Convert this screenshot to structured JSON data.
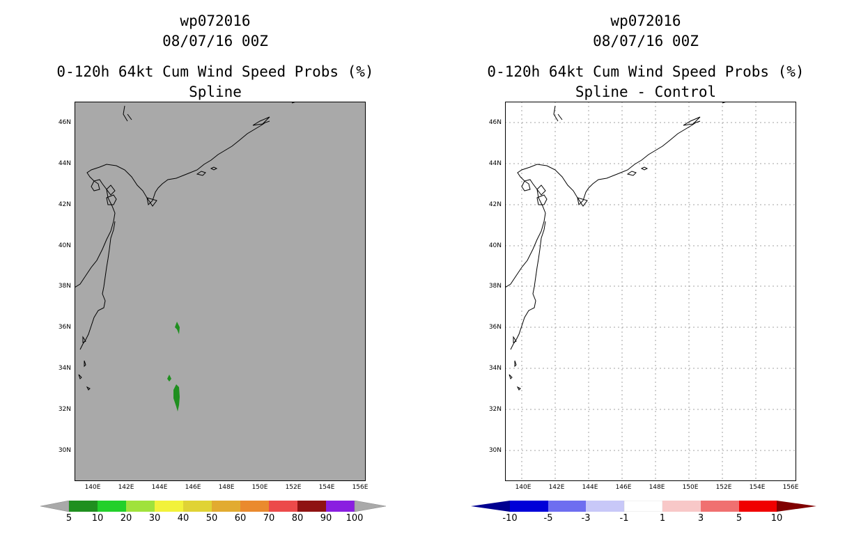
{
  "left": {
    "storm": "wp072016",
    "datetime": "08/07/16 00Z",
    "product": "0-120h 64kt Cum Wind Speed Probs (%)",
    "subtitle": "Spline",
    "colorbar": {
      "colors": [
        "#1f8f1f",
        "#22d02a",
        "#a0e23c",
        "#f2f23a",
        "#e0d335",
        "#e2ab30",
        "#ea8a2e",
        "#ec4a4a",
        "#8f1212",
        "#8a1fe0"
      ],
      "ends": "#a9a9a9",
      "labels": [
        "5",
        "10",
        "20",
        "30",
        "40",
        "50",
        "60",
        "70",
        "80",
        "90",
        "100"
      ]
    }
  },
  "right": {
    "storm": "wp072016",
    "datetime": "08/07/16 00Z",
    "product": "0-120h 64kt Cum Wind Speed Probs (%)",
    "subtitle": "Spline - Control",
    "colorbar": {
      "colors": [
        "#0000d8",
        "#6e6ef0",
        "#c8c8f8",
        "#ffffff",
        "#f8c8c8",
        "#f07070",
        "#f00000"
      ],
      "low_end": "#000090",
      "high_end": "#800000",
      "labels": [
        "-10",
        "-5",
        "-3",
        "-1",
        "1",
        "3",
        "5",
        "10"
      ]
    }
  },
  "axes": {
    "lat_labels": [
      "46N",
      "44N",
      "42N",
      "40N",
      "38N",
      "36N",
      "34N",
      "32N",
      "30N"
    ],
    "lon_labels": [
      "140E",
      "142E",
      "144E",
      "146E",
      "148E",
      "150E",
      "152E",
      "154E",
      "156E"
    ],
    "lat_range": [
      28.5,
      47
    ],
    "lon_range": [
      139,
      156
    ]
  },
  "colors": {
    "map_bg_left": "#a9a9a9",
    "map_bg_right": "#ffffff",
    "prob_fill": "#1f8f1f"
  }
}
